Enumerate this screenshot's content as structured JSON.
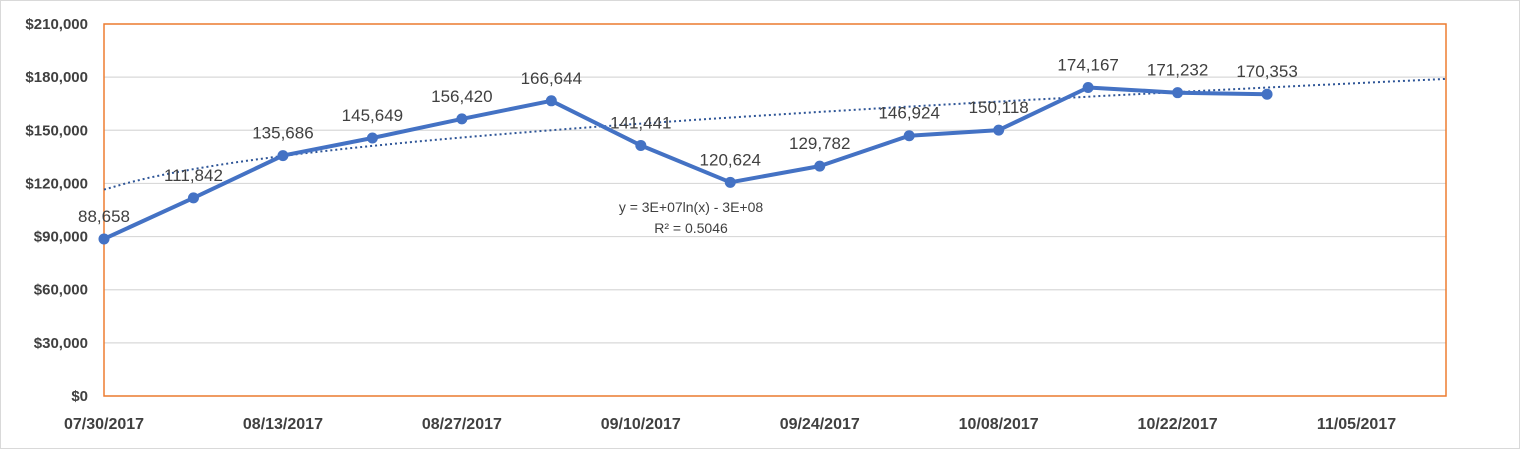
{
  "chart_data": {
    "type": "line",
    "title": "",
    "xlabel": "",
    "ylabel": "",
    "x": [
      "07/30/2017",
      "08/06/2017",
      "08/13/2017",
      "08/20/2017",
      "08/27/2017",
      "09/03/2017",
      "09/10/2017",
      "09/17/2017",
      "09/24/2017",
      "10/01/2017",
      "10/08/2017",
      "10/15/2017",
      "10/22/2017",
      "10/29/2017"
    ],
    "series": [
      {
        "values": [
          88658,
          111842,
          135686,
          145649,
          156420,
          166644,
          141441,
          120624,
          129782,
          146924,
          150118,
          174167,
          171232,
          170353
        ],
        "labels": [
          "88,658",
          "111,842",
          "135,686",
          "145,649",
          "156,420",
          "166,644",
          "141,441",
          "120,624",
          "129,782",
          "146,924",
          "150,118",
          "174,167",
          "171,232",
          "170,353"
        ],
        "color": "#4472c4"
      }
    ],
    "xlim": [
      "07/30/2017",
      "11/12/2017"
    ],
    "ylim": [
      0,
      210000
    ],
    "yticks": [
      0,
      30000,
      60000,
      90000,
      120000,
      150000,
      180000,
      210000
    ],
    "ytick_labels": [
      "$0",
      "$30,000",
      "$60,000",
      "$90,000",
      "$120,000",
      "$150,000",
      "$180,000",
      "$210,000"
    ],
    "xtick_labels": [
      "07/30/2017",
      "08/13/2017",
      "08/27/2017",
      "09/10/2017",
      "09/24/2017",
      "10/08/2017",
      "10/22/2017",
      "11/05/2017"
    ],
    "grid": true,
    "trendline": {
      "type": "logarithmic",
      "equation": "y = 3E+07ln(x) - 3E+08",
      "r_squared": "R² = 0.5046",
      "start_value": 116500,
      "end_value": 179000,
      "style": "dotted",
      "color": "#2e5597"
    },
    "plot_border_color": "#ed7d31",
    "gridline_color": "#d9d9d9"
  }
}
